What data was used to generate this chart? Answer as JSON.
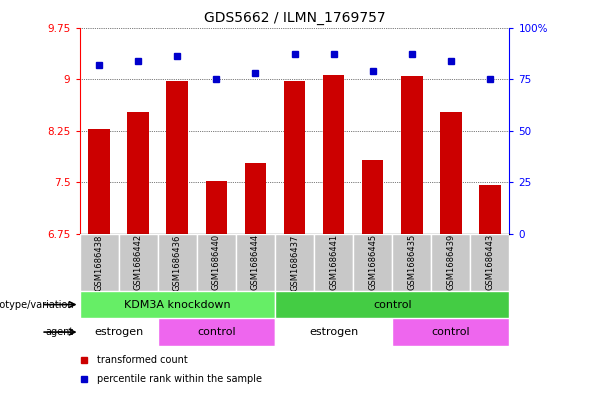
{
  "title": "GDS5662 / ILMN_1769757",
  "samples": [
    "GSM1686438",
    "GSM1686442",
    "GSM1686436",
    "GSM1686440",
    "GSM1686444",
    "GSM1686437",
    "GSM1686441",
    "GSM1686445",
    "GSM1686435",
    "GSM1686439",
    "GSM1686443"
  ],
  "bar_values": [
    8.28,
    8.52,
    8.97,
    7.52,
    7.78,
    8.97,
    9.06,
    7.82,
    9.04,
    8.52,
    7.46
  ],
  "dot_values": [
    82,
    84,
    86,
    75,
    78,
    87,
    87,
    79,
    87,
    84,
    75
  ],
  "ylim_left": [
    6.75,
    9.75
  ],
  "ylim_right": [
    0,
    100
  ],
  "yticks_left": [
    6.75,
    7.5,
    8.25,
    9.0,
    9.75
  ],
  "ytick_labels_left": [
    "6.75",
    "7.5",
    "8.25",
    "9",
    "9.75"
  ],
  "yticks_right": [
    0,
    25,
    50,
    75,
    100
  ],
  "ytick_labels_right": [
    "0",
    "25",
    "50",
    "75",
    "100%"
  ],
  "bar_color": "#CC0000",
  "dot_color": "#0000CC",
  "sample_bg": "#C8C8C8",
  "genotype_groups": [
    {
      "text": "KDM3A knockdown",
      "start": 0,
      "end": 4,
      "color": "#66EE66"
    },
    {
      "text": "control",
      "start": 5,
      "end": 10,
      "color": "#44CC44"
    }
  ],
  "agent_groups": [
    {
      "text": "estrogen",
      "start": 0,
      "end": 1,
      "color": "#FFFFFF"
    },
    {
      "text": "control",
      "start": 2,
      "end": 4,
      "color": "#EE66EE"
    },
    {
      "text": "estrogen",
      "start": 5,
      "end": 7,
      "color": "#FFFFFF"
    },
    {
      "text": "control",
      "start": 8,
      "end": 10,
      "color": "#EE66EE"
    }
  ],
  "genotype_label": "genotype/variation",
  "agent_label": "agent",
  "legend_items": [
    {
      "label": "transformed count",
      "color": "#CC0000"
    },
    {
      "label": "percentile rank within the sample",
      "color": "#0000CC"
    }
  ],
  "title_fontsize": 10,
  "tick_fontsize": 7.5,
  "row_fontsize": 8,
  "sample_fontsize": 6,
  "bar_width": 0.55
}
